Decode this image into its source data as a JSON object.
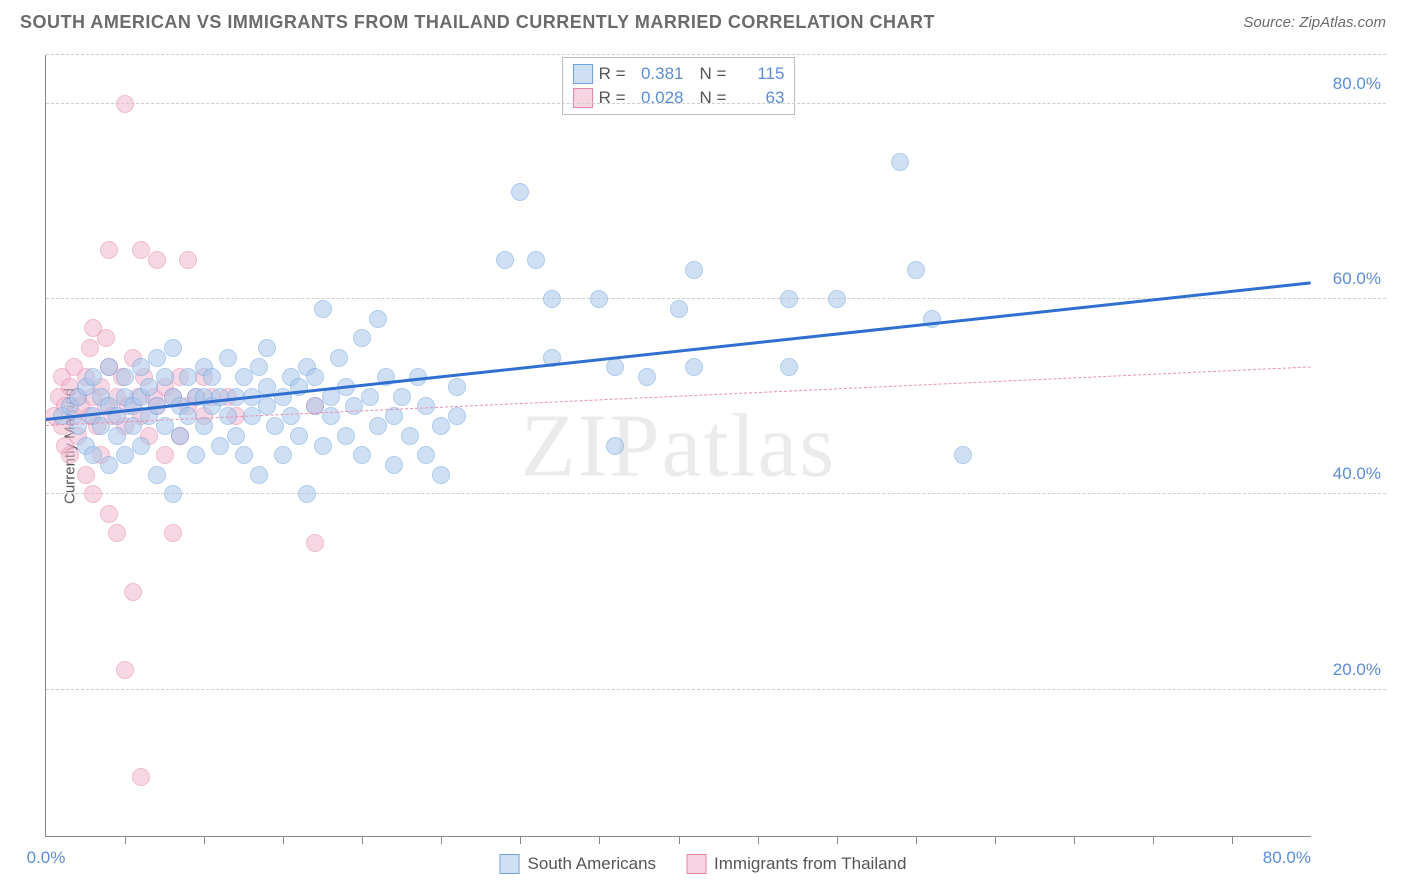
{
  "title": "SOUTH AMERICAN VS IMMIGRANTS FROM THAILAND CURRENTLY MARRIED CORRELATION CHART",
  "source_prefix": "Source: ",
  "source_name": "ZipAtlas.com",
  "watermark": "ZIPatlas",
  "chart": {
    "type": "scatter",
    "ylabel": "Currently Married",
    "xlim": [
      0,
      80
    ],
    "ylim": [
      5,
      85
    ],
    "x_ticks": [
      0,
      80
    ],
    "x_tick_labels": [
      "0.0%",
      "80.0%"
    ],
    "x_minor_ticks": [
      5,
      10,
      15,
      20,
      25,
      30,
      35,
      40,
      45,
      50,
      55,
      60,
      65,
      70,
      75
    ],
    "y_gridlines": [
      20,
      40,
      60,
      80,
      85
    ],
    "y_tick_labels": {
      "20": "20.0%",
      "40": "40.0%",
      "60": "60.0%",
      "80": "80.0%"
    },
    "background_color": "#ffffff",
    "grid_color": "#cccccc",
    "axis_color": "#888888",
    "tick_label_color": "#5b8dd6",
    "point_radius": 9,
    "point_opacity": 0.55,
    "series": [
      {
        "name": "South Americans",
        "color_fill": "#a8c8ec",
        "color_stroke": "#6fa3dd",
        "swatch_fill": "#cfe0f5",
        "swatch_stroke": "#6fa3dd",
        "R": "0.381",
        "N": "115",
        "trend": {
          "y_at_x0": 47.5,
          "y_at_xmax": 61.5,
          "stroke": "#2f6fd0",
          "width": 3,
          "dash": "solid"
        },
        "points": [
          [
            1,
            48
          ],
          [
            1.5,
            49
          ],
          [
            2,
            47
          ],
          [
            2,
            50
          ],
          [
            2.5,
            45
          ],
          [
            2.5,
            51
          ],
          [
            3,
            48
          ],
          [
            3,
            44
          ],
          [
            3,
            52
          ],
          [
            3.5,
            47
          ],
          [
            3.5,
            50
          ],
          [
            4,
            49
          ],
          [
            4,
            43
          ],
          [
            4,
            53
          ],
          [
            4.5,
            48
          ],
          [
            4.5,
            46
          ],
          [
            5,
            50
          ],
          [
            5,
            44
          ],
          [
            5,
            52
          ],
          [
            5.5,
            49
          ],
          [
            5.5,
            47
          ],
          [
            6,
            50
          ],
          [
            6,
            53
          ],
          [
            6,
            45
          ],
          [
            6.5,
            48
          ],
          [
            6.5,
            51
          ],
          [
            7,
            54
          ],
          [
            7,
            42
          ],
          [
            7,
            49
          ],
          [
            7.5,
            47
          ],
          [
            7.5,
            52
          ],
          [
            8,
            50
          ],
          [
            8,
            40
          ],
          [
            8,
            55
          ],
          [
            8.5,
            46
          ],
          [
            8.5,
            49
          ],
          [
            9,
            52
          ],
          [
            9,
            48
          ],
          [
            9.5,
            50
          ],
          [
            9.5,
            44
          ],
          [
            10,
            53
          ],
          [
            10,
            47
          ],
          [
            10,
            50
          ],
          [
            10.5,
            49
          ],
          [
            10.5,
            52
          ],
          [
            11,
            45
          ],
          [
            11,
            50
          ],
          [
            11.5,
            48
          ],
          [
            11.5,
            54
          ],
          [
            12,
            50
          ],
          [
            12,
            46
          ],
          [
            12.5,
            52
          ],
          [
            12.5,
            44
          ],
          [
            13,
            50
          ],
          [
            13,
            48
          ],
          [
            13.5,
            53
          ],
          [
            13.5,
            42
          ],
          [
            14,
            51
          ],
          [
            14,
            49
          ],
          [
            14,
            55
          ],
          [
            14.5,
            47
          ],
          [
            15,
            50
          ],
          [
            15,
            44
          ],
          [
            15.5,
            52
          ],
          [
            15.5,
            48
          ],
          [
            16,
            51
          ],
          [
            16,
            46
          ],
          [
            16.5,
            53
          ],
          [
            16.5,
            40
          ],
          [
            17,
            49
          ],
          [
            17,
            52
          ],
          [
            17.5,
            45
          ],
          [
            17.5,
            59
          ],
          [
            18,
            50
          ],
          [
            18,
            48
          ],
          [
            18.5,
            54
          ],
          [
            19,
            46
          ],
          [
            19,
            51
          ],
          [
            19.5,
            49
          ],
          [
            20,
            56
          ],
          [
            20,
            44
          ],
          [
            20.5,
            50
          ],
          [
            21,
            47
          ],
          [
            21,
            58
          ],
          [
            21.5,
            52
          ],
          [
            22,
            48
          ],
          [
            22,
            43
          ],
          [
            22.5,
            50
          ],
          [
            23,
            46
          ],
          [
            23.5,
            52
          ],
          [
            24,
            44
          ],
          [
            24,
            49
          ],
          [
            25,
            47
          ],
          [
            25,
            42
          ],
          [
            26,
            51
          ],
          [
            26,
            48
          ],
          [
            29,
            64
          ],
          [
            30,
            71
          ],
          [
            31,
            64
          ],
          [
            32,
            54
          ],
          [
            32,
            60
          ],
          [
            35,
            60
          ],
          [
            36,
            53
          ],
          [
            36,
            45
          ],
          [
            38,
            52
          ],
          [
            40,
            59
          ],
          [
            41,
            53
          ],
          [
            41,
            63
          ],
          [
            47,
            60
          ],
          [
            47,
            53
          ],
          [
            50,
            60
          ],
          [
            54,
            74
          ],
          [
            55,
            63
          ],
          [
            56,
            58
          ],
          [
            58,
            44
          ]
        ]
      },
      {
        "name": "Immigrants from Thailand",
        "color_fill": "#f2b8cd",
        "color_stroke": "#e785aa",
        "swatch_fill": "#f7d4e1",
        "swatch_stroke": "#e785aa",
        "R": "0.028",
        "N": "63",
        "trend": {
          "y_at_x0": 47.0,
          "y_at_xmax": 53.0,
          "stroke": "#e890b0",
          "width": 1,
          "dash": "dashed"
        },
        "points": [
          [
            0.5,
            48
          ],
          [
            0.8,
            50
          ],
          [
            1,
            47
          ],
          [
            1,
            52
          ],
          [
            1.2,
            45
          ],
          [
            1.2,
            49
          ],
          [
            1.5,
            51
          ],
          [
            1.5,
            44
          ],
          [
            1.8,
            48
          ],
          [
            1.8,
            53
          ],
          [
            2,
            46
          ],
          [
            2,
            50
          ],
          [
            2.2,
            49
          ],
          [
            2.5,
            52
          ],
          [
            2.5,
            42
          ],
          [
            2.8,
            48
          ],
          [
            2.8,
            55
          ],
          [
            3,
            50
          ],
          [
            3,
            40
          ],
          [
            3,
            57
          ],
          [
            3.2,
            47
          ],
          [
            3.5,
            51
          ],
          [
            3.5,
            44
          ],
          [
            3.8,
            49
          ],
          [
            3.8,
            56
          ],
          [
            4,
            53
          ],
          [
            4,
            38
          ],
          [
            4,
            65
          ],
          [
            4.2,
            48
          ],
          [
            4.5,
            50
          ],
          [
            4.5,
            36
          ],
          [
            4.8,
            52
          ],
          [
            5,
            47
          ],
          [
            5,
            22
          ],
          [
            5,
            80
          ],
          [
            5.2,
            49
          ],
          [
            5.5,
            54
          ],
          [
            5.5,
            30
          ],
          [
            5.8,
            50
          ],
          [
            6,
            48
          ],
          [
            6,
            65
          ],
          [
            6,
            11
          ],
          [
            6.2,
            52
          ],
          [
            6.5,
            46
          ],
          [
            6.8,
            50
          ],
          [
            7,
            49
          ],
          [
            7,
            64
          ],
          [
            7.5,
            51
          ],
          [
            7.5,
            44
          ],
          [
            8,
            50
          ],
          [
            8,
            36
          ],
          [
            8.5,
            52
          ],
          [
            8.5,
            46
          ],
          [
            9,
            64
          ],
          [
            9,
            49
          ],
          [
            9.5,
            50
          ],
          [
            10,
            48
          ],
          [
            10,
            52
          ],
          [
            10.5,
            50
          ],
          [
            11.5,
            50
          ],
          [
            12,
            48
          ],
          [
            17,
            49
          ],
          [
            17,
            35
          ]
        ]
      }
    ]
  },
  "legend_top_labels": {
    "R": "R =",
    "N": "N ="
  },
  "legend_bottom": [
    {
      "label": "South Americans",
      "series": 0
    },
    {
      "label": "Immigrants from Thailand",
      "series": 1
    }
  ]
}
